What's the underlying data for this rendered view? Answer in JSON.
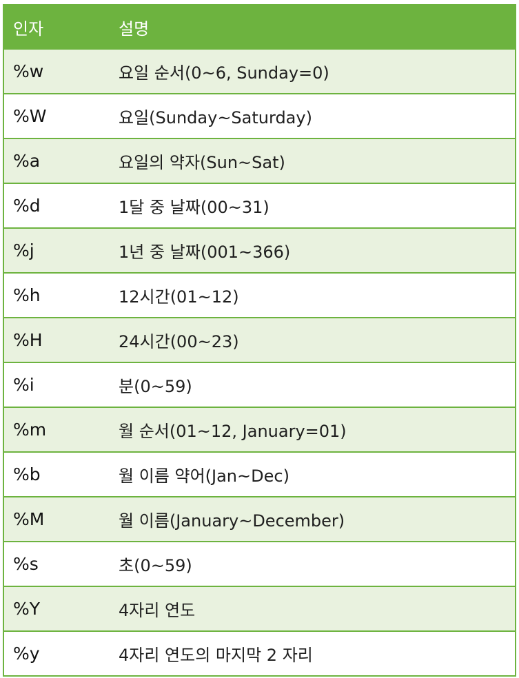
{
  "table": {
    "headers": {
      "arg": "인자",
      "desc": "설명"
    },
    "rows": [
      {
        "arg": "%w",
        "desc": "요일 순서(0~6, Sunday=0)"
      },
      {
        "arg": "%W",
        "desc": "요일(Sunday~Saturday)"
      },
      {
        "arg": "%a",
        "desc": "요일의 약자(Sun~Sat)"
      },
      {
        "arg": "%d",
        "desc": "1달 중 날짜(00~31)"
      },
      {
        "arg": "%j",
        "desc": "1년 중 날짜(001~366)"
      },
      {
        "arg": "%h",
        "desc": "12시간(01~12)"
      },
      {
        "arg": "%H",
        "desc": "24시간(00~23)"
      },
      {
        "arg": "%i",
        "desc": "분(0~59)"
      },
      {
        "arg": "%m",
        "desc": "월 순서(01~12, January=01)"
      },
      {
        "arg": "%b",
        "desc": "월 이름 약어(Jan~Dec)"
      },
      {
        "arg": "%M",
        "desc": "월 이름(January~December)"
      },
      {
        "arg": "%s",
        "desc": "초(0~59)"
      },
      {
        "arg": "%Y",
        "desc": "4자리 연도"
      },
      {
        "arg": "%y",
        "desc": "4자리 연도의 마지막 2 자리"
      }
    ]
  },
  "colors": {
    "header_bg": "#6db33f",
    "row_shade": "#e9f2df",
    "border": "#6db33f"
  }
}
